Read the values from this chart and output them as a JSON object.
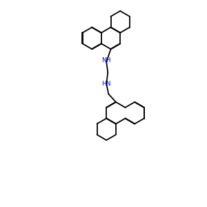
{
  "background_color": "#ffffff",
  "bond_color": "#000000",
  "nh_color": "#0000ff",
  "line_width": 1.3,
  "fig_width": 3.0,
  "fig_height": 3.0,
  "dpi": 100
}
